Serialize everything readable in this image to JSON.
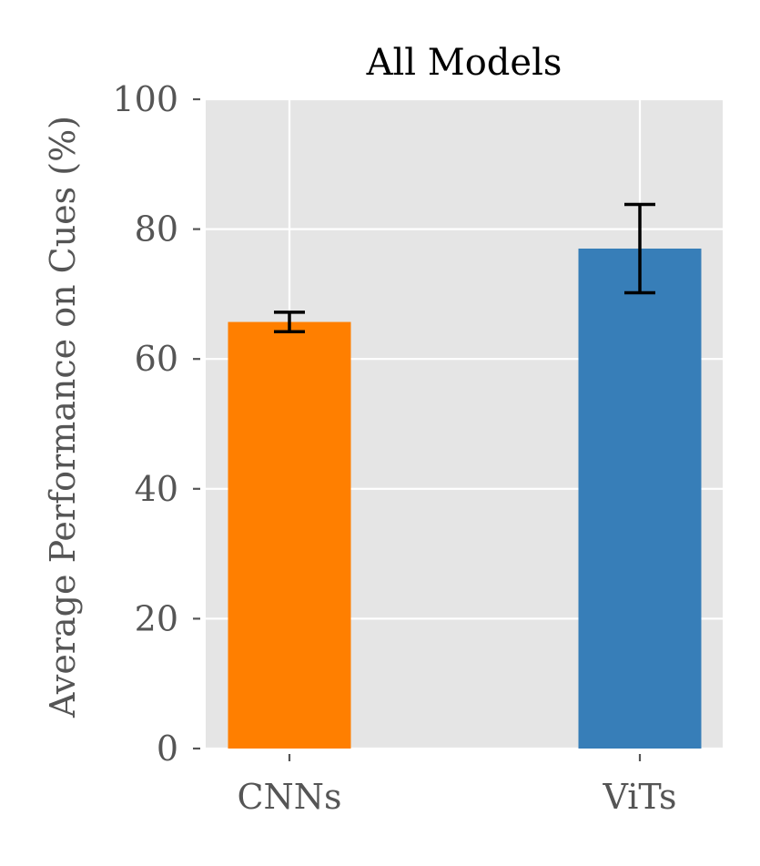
{
  "chart_data": {
    "type": "bar",
    "title": "All Models",
    "xlabel": "",
    "ylabel": "Average Performance on Cues (%)",
    "categories": [
      "CNNs",
      "ViTs"
    ],
    "values": [
      65.7,
      77.0
    ],
    "error_low": [
      64.2,
      70.2
    ],
    "error_high": [
      67.2,
      83.8
    ],
    "bar_colors": [
      "#ff7f00",
      "#377eb8"
    ],
    "ylim": [
      0,
      100
    ],
    "yticks": [
      "0",
      "20",
      "40",
      "60",
      "80",
      "100"
    ],
    "ytick_values": [
      0,
      20,
      40,
      60,
      80,
      100
    ],
    "grid": true,
    "background_color": "#e5e5e5",
    "grid_color": "#ffffff",
    "errorbar_color": "#000000"
  }
}
